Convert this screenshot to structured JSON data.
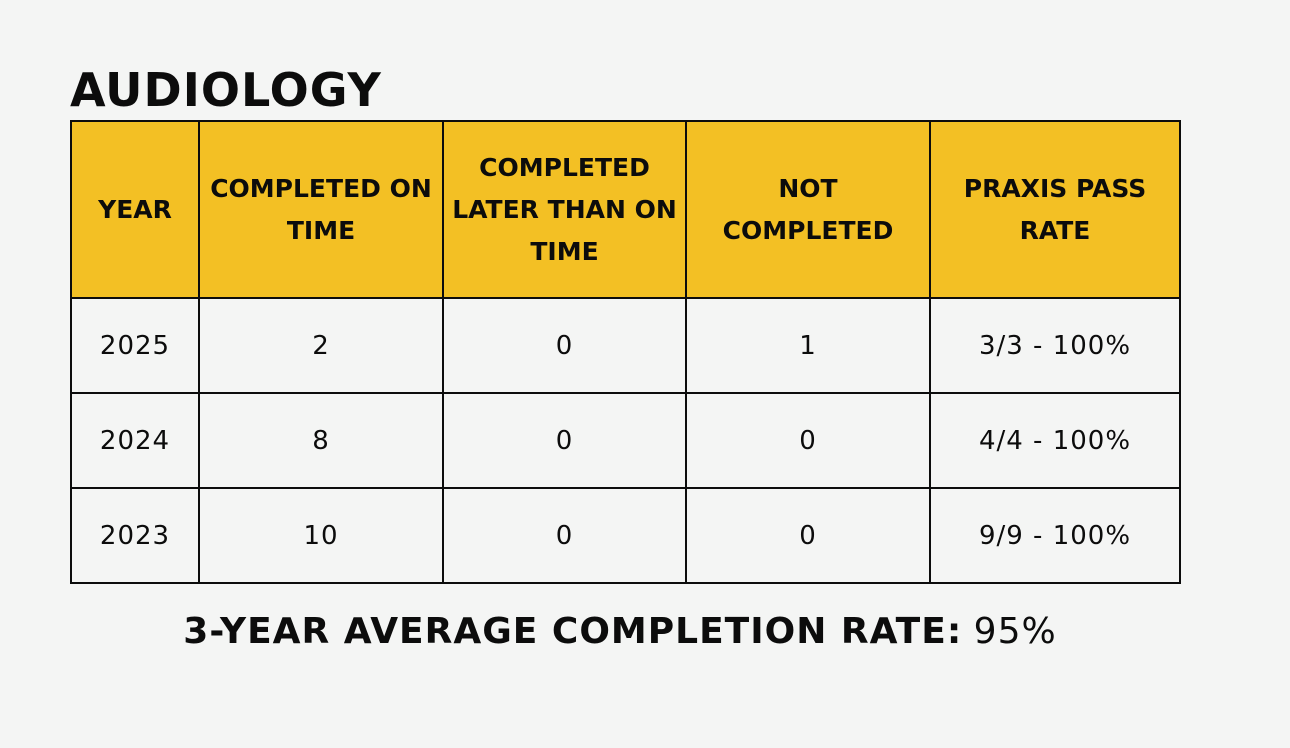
{
  "title": "AUDIOLOGY",
  "table": {
    "headers": [
      "YEAR",
      "COMPLETED ON TIME",
      "COMPLETED LATER THAN ON TIME",
      "NOT COMPLETED",
      "PRAXIS PASS RATE"
    ],
    "rows": [
      [
        "2025",
        "2",
        "0",
        "1",
        "3/3 - 100%"
      ],
      [
        "2024",
        "8",
        "0",
        "0",
        "4/4 - 100%"
      ],
      [
        "2023",
        "10",
        "0",
        "0",
        "9/9 - 100%"
      ]
    ]
  },
  "summary": {
    "label": "3-YEAR AVERAGE COMPLETION RATE:",
    "value": "95%"
  },
  "colors": {
    "header_background": "#f3c024",
    "page_background": "#f4f5f4",
    "border": "#0c0c0c"
  }
}
